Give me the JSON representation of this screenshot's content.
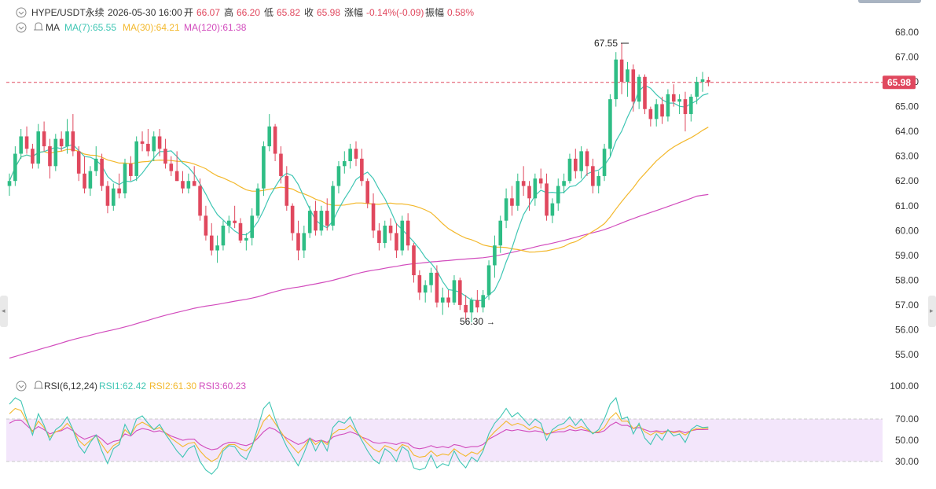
{
  "header": {
    "symbol": "HYPE/USDT永续",
    "datetime": "2026-05-30 16:00",
    "open_label": "开",
    "open": "66.07",
    "high_label": "高",
    "high": "66.20",
    "low_label": "低",
    "low": "65.82",
    "close_label": "收",
    "close": "65.98",
    "change_label": "涨幅",
    "change": "-0.14%(-0.09)",
    "amp_label": "振幅",
    "amp": "0.58%"
  },
  "ma_legend": {
    "label": "MA",
    "ma7": "MA(7):65.55",
    "ma30": "MA(30):64.21",
    "ma120": "MA(120):61.38"
  },
  "rsi_legend": {
    "label": "RSI(6,12,24)",
    "rsi1": "RSI1:62.42",
    "rsi2": "RSI2:61.30",
    "rsi3": "RSI3:60.23"
  },
  "price_labels": {
    "current": "65.98",
    "high_marker": "67.55",
    "low_marker": "56.30",
    "arrow": "→"
  },
  "colors": {
    "up": "#2ebd85",
    "down": "#e0485e",
    "ma7": "#3fc6b4",
    "ma30": "#f3b82c",
    "ma120": "#d24cbd",
    "rsi1": "#3fc6b4",
    "rsi2": "#f3b82c",
    "rsi3": "#d24cbd",
    "rsi_band": "#f3e6fb"
  },
  "chart_data": [
    {
      "type": "candlestick",
      "title": "HYPE/USDT永续",
      "y_axis_ticks": [
        "68.00",
        "67.00",
        "66.00",
        "65.00",
        "64.00",
        "63.00",
        "62.00",
        "61.00",
        "60.00",
        "59.00",
        "58.00",
        "57.00",
        "56.00",
        "55.00"
      ],
      "ylim": [
        54.7,
        68.5
      ],
      "candles_ohlc": [
        [
          61.8,
          62.3,
          61.4,
          62.0
        ],
        [
          62.0,
          63.4,
          61.8,
          63.1
        ],
        [
          63.1,
          64.1,
          62.9,
          63.8
        ],
        [
          63.8,
          64.2,
          63.1,
          63.3
        ],
        [
          63.3,
          63.5,
          62.5,
          62.7
        ],
        [
          62.7,
          64.3,
          62.5,
          64.0
        ],
        [
          64.0,
          64.4,
          63.2,
          63.4
        ],
        [
          63.4,
          63.7,
          62.1,
          62.6
        ],
        [
          62.6,
          63.9,
          62.4,
          63.7
        ],
        [
          63.7,
          64.0,
          63.2,
          63.4
        ],
        [
          63.4,
          64.5,
          63.1,
          64.0
        ],
        [
          64.0,
          64.7,
          63.0,
          63.2
        ],
        [
          63.2,
          63.4,
          62.0,
          62.3
        ],
        [
          62.3,
          63.0,
          61.5,
          61.7
        ],
        [
          61.7,
          62.6,
          61.4,
          62.4
        ],
        [
          62.4,
          63.4,
          62.2,
          62.9
        ],
        [
          62.9,
          63.1,
          61.6,
          61.8
        ],
        [
          61.8,
          62.0,
          60.7,
          61.0
        ],
        [
          61.0,
          61.9,
          60.8,
          61.7
        ],
        [
          61.7,
          62.3,
          61.3,
          61.5
        ],
        [
          61.5,
          62.9,
          61.3,
          62.7
        ],
        [
          62.7,
          63.0,
          62.0,
          62.2
        ],
        [
          62.2,
          63.8,
          62.0,
          63.6
        ],
        [
          63.6,
          64.0,
          63.2,
          63.5
        ],
        [
          63.5,
          64.1,
          63.0,
          63.2
        ],
        [
          63.2,
          64.0,
          62.8,
          63.8
        ],
        [
          63.8,
          64.1,
          63.0,
          63.3
        ],
        [
          63.3,
          63.7,
          62.5,
          62.7
        ],
        [
          62.7,
          63.0,
          62.2,
          62.4
        ],
        [
          62.4,
          63.2,
          62.0,
          62.0
        ],
        [
          62.0,
          62.4,
          61.5,
          61.7
        ],
        [
          61.7,
          62.3,
          61.5,
          62.0
        ],
        [
          62.0,
          62.6,
          61.8,
          61.8
        ],
        [
          61.8,
          62.1,
          60.4,
          60.6
        ],
        [
          60.6,
          61.0,
          59.6,
          59.8
        ],
        [
          59.8,
          60.3,
          59.0,
          59.2
        ],
        [
          59.2,
          59.8,
          58.7,
          59.4
        ],
        [
          59.4,
          60.4,
          59.2,
          60.2
        ],
        [
          60.2,
          60.6,
          59.9,
          60.4
        ],
        [
          60.4,
          61.0,
          60.1,
          60.3
        ],
        [
          60.3,
          60.5,
          59.5,
          59.6
        ],
        [
          59.6,
          59.9,
          59.2,
          59.7
        ],
        [
          59.7,
          60.9,
          59.4,
          60.6
        ],
        [
          60.6,
          61.9,
          60.5,
          61.7
        ],
        [
          61.7,
          63.6,
          61.4,
          63.4
        ],
        [
          63.4,
          64.7,
          63.2,
          64.2
        ],
        [
          64.2,
          64.3,
          62.8,
          63.1
        ],
        [
          63.1,
          63.4,
          61.9,
          62.2
        ],
        [
          62.2,
          62.6,
          60.8,
          61.0
        ],
        [
          61.0,
          61.1,
          59.6,
          59.9
        ],
        [
          59.9,
          60.4,
          58.8,
          59.2
        ],
        [
          59.2,
          60.2,
          58.9,
          59.9
        ],
        [
          59.9,
          61.0,
          59.7,
          60.8
        ],
        [
          60.8,
          61.2,
          59.8,
          60.0
        ],
        [
          60.0,
          61.0,
          59.8,
          60.8
        ],
        [
          60.8,
          61.3,
          60.0,
          60.2
        ],
        [
          60.2,
          62.0,
          60.0,
          61.8
        ],
        [
          61.8,
          62.8,
          61.5,
          62.6
        ],
        [
          62.6,
          63.2,
          62.3,
          62.8
        ],
        [
          62.8,
          63.5,
          62.5,
          63.3
        ],
        [
          63.3,
          63.6,
          62.6,
          62.9
        ],
        [
          62.9,
          63.3,
          61.8,
          62.0
        ],
        [
          62.0,
          62.1,
          60.9,
          61.1
        ],
        [
          61.1,
          61.5,
          59.7,
          60.0
        ],
        [
          60.0,
          60.3,
          59.2,
          59.5
        ],
        [
          59.5,
          60.4,
          59.3,
          60.2
        ],
        [
          60.2,
          60.5,
          59.6,
          59.9
        ],
        [
          59.9,
          60.3,
          58.9,
          59.2
        ],
        [
          59.2,
          60.6,
          59.0,
          60.4
        ],
        [
          60.4,
          60.7,
          59.2,
          59.4
        ],
        [
          59.4,
          59.5,
          57.9,
          58.2
        ],
        [
          58.2,
          58.4,
          57.2,
          57.5
        ],
        [
          57.5,
          58.0,
          57.1,
          57.8
        ],
        [
          57.8,
          58.5,
          57.5,
          58.3
        ],
        [
          58.3,
          58.6,
          56.9,
          57.1
        ],
        [
          57.1,
          57.7,
          56.6,
          57.3
        ],
        [
          57.3,
          57.6,
          56.9,
          57.1
        ],
        [
          57.1,
          58.2,
          57.0,
          58.0
        ],
        [
          58.0,
          58.1,
          56.8,
          57.0
        ],
        [
          57.0,
          57.4,
          56.4,
          56.7
        ],
        [
          56.7,
          57.3,
          56.3,
          57.2
        ],
        [
          57.2,
          57.6,
          56.7,
          56.9
        ],
        [
          56.9,
          57.6,
          56.7,
          57.4
        ],
        [
          57.4,
          58.8,
          57.2,
          58.6
        ],
        [
          58.6,
          59.8,
          58.1,
          59.4
        ],
        [
          59.4,
          60.6,
          59.1,
          60.4
        ],
        [
          60.4,
          61.7,
          60.1,
          61.3
        ],
        [
          61.3,
          61.8,
          60.6,
          61.0
        ],
        [
          61.0,
          62.3,
          60.8,
          62.0
        ],
        [
          62.0,
          62.6,
          61.4,
          61.8
        ],
        [
          61.8,
          62.0,
          60.8,
          61.3
        ],
        [
          61.3,
          62.3,
          61.0,
          62.1
        ],
        [
          62.1,
          62.5,
          61.7,
          61.9
        ],
        [
          61.9,
          62.3,
          60.4,
          60.6
        ],
        [
          60.6,
          61.3,
          60.3,
          61.1
        ],
        [
          61.1,
          62.1,
          60.8,
          61.8
        ],
        [
          61.8,
          62.3,
          61.5,
          62.0
        ],
        [
          62.0,
          63.1,
          61.9,
          62.9
        ],
        [
          62.9,
          63.3,
          62.1,
          62.4
        ],
        [
          62.4,
          63.4,
          62.1,
          63.2
        ],
        [
          63.2,
          63.3,
          62.2,
          62.6
        ],
        [
          62.6,
          62.9,
          61.5,
          61.8
        ],
        [
          61.8,
          62.4,
          61.5,
          62.2
        ],
        [
          62.2,
          63.5,
          62.0,
          63.3
        ],
        [
          63.3,
          65.5,
          63.0,
          65.3
        ],
        [
          65.3,
          67.2,
          65.0,
          66.9
        ],
        [
          66.9,
          67.55,
          65.5,
          66.0
        ],
        [
          66.0,
          66.8,
          65.4,
          66.5
        ],
        [
          66.5,
          66.7,
          64.8,
          65.2
        ],
        [
          65.2,
          66.3,
          64.9,
          66.2
        ],
        [
          66.2,
          66.3,
          64.7,
          64.9
        ],
        [
          64.9,
          65.0,
          64.2,
          64.5
        ],
        [
          64.5,
          65.3,
          64.2,
          65.1
        ],
        [
          65.1,
          65.4,
          64.3,
          64.6
        ],
        [
          64.6,
          65.7,
          64.4,
          65.5
        ],
        [
          65.5,
          65.9,
          65.0,
          65.2
        ],
        [
          65.2,
          65.5,
          64.7,
          65.3
        ],
        [
          65.3,
          65.6,
          64.0,
          64.7
        ],
        [
          64.7,
          65.5,
          64.4,
          65.4
        ],
        [
          65.4,
          66.2,
          65.1,
          66.0
        ],
        [
          66.0,
          66.4,
          65.6,
          66.1
        ],
        [
          66.07,
          66.2,
          65.82,
          65.98
        ]
      ],
      "annotations": [
        {
          "text": "67.55",
          "kind": "period-high"
        },
        {
          "text": "56.30",
          "kind": "period-low"
        },
        {
          "text": "65.98",
          "kind": "last-price"
        }
      ]
    },
    {
      "type": "line",
      "title": "RSI(6,12,24)",
      "y_axis_ticks": [
        "100.00",
        "70.00",
        "50.00",
        "30.00"
      ],
      "ylim": [
        0,
        100
      ],
      "reference_lines": [
        70,
        30
      ],
      "series": [
        {
          "name": "RSI1",
          "values": [
            84,
            90,
            87,
            70,
            55,
            75,
            64,
            50,
            60,
            64,
            72,
            60,
            45,
            38,
            48,
            55,
            40,
            28,
            42,
            46,
            65,
            55,
            70,
            73,
            66,
            60,
            65,
            56,
            48,
            40,
            34,
            42,
            45,
            30,
            22,
            18,
            24,
            40,
            45,
            44,
            36,
            32,
            44,
            62,
            80,
            86,
            70,
            56,
            44,
            35,
            26,
            38,
            52,
            40,
            50,
            40,
            62,
            68,
            66,
            72,
            60,
            50,
            40,
            32,
            28,
            42,
            38,
            30,
            44,
            40,
            24,
            22,
            24,
            36,
            24,
            28,
            26,
            40,
            30,
            24,
            34,
            30,
            40,
            56,
            66,
            72,
            80,
            72,
            76,
            70,
            64,
            70,
            66,
            50,
            60,
            64,
            66,
            72,
            64,
            70,
            62,
            56,
            60,
            70,
            84,
            90,
            70,
            72,
            56,
            66,
            52,
            46,
            56,
            50,
            60,
            54,
            56,
            48,
            60,
            64,
            62,
            62.42
          ]
        },
        {
          "name": "RSI2",
          "values": [
            75,
            80,
            78,
            68,
            58,
            68,
            62,
            53,
            58,
            60,
            66,
            60,
            50,
            45,
            50,
            54,
            46,
            38,
            45,
            48,
            60,
            55,
            64,
            67,
            64,
            60,
            62,
            57,
            52,
            48,
            44,
            47,
            48,
            40,
            34,
            30,
            33,
            42,
            46,
            46,
            42,
            40,
            45,
            56,
            68,
            74,
            66,
            58,
            50,
            44,
            38,
            44,
            52,
            46,
            50,
            46,
            56,
            60,
            60,
            64,
            58,
            53,
            47,
            42,
            39,
            45,
            43,
            40,
            46,
            44,
            36,
            34,
            35,
            40,
            35,
            37,
            36,
            42,
            38,
            35,
            39,
            37,
            42,
            52,
            58,
            63,
            68,
            64,
            66,
            64,
            60,
            63,
            61,
            55,
            58,
            60,
            61,
            64,
            61,
            63,
            60,
            57,
            58,
            62,
            71,
            76,
            68,
            68,
            61,
            64,
            58,
            55,
            58,
            56,
            59,
            57,
            58,
            55,
            59,
            61,
            61,
            61.3
          ]
        },
        {
          "name": "RSI3",
          "values": [
            66,
            69,
            69,
            64,
            59,
            63,
            60,
            56,
            58,
            59,
            62,
            59,
            54,
            51,
            53,
            55,
            51,
            46,
            49,
            50,
            56,
            54,
            59,
            61,
            60,
            58,
            59,
            57,
            54,
            52,
            50,
            51,
            51,
            46,
            43,
            41,
            42,
            46,
            48,
            48,
            46,
            45,
            47,
            52,
            58,
            62,
            60,
            56,
            52,
            49,
            46,
            48,
            52,
            49,
            50,
            48,
            53,
            55,
            56,
            58,
            56,
            53,
            51,
            48,
            47,
            48,
            47,
            46,
            48,
            47,
            43,
            42,
            43,
            45,
            43,
            44,
            43,
            46,
            45,
            43,
            44,
            44,
            46,
            51,
            54,
            57,
            60,
            59,
            60,
            59,
            58,
            59,
            58,
            56,
            57,
            58,
            58,
            60,
            59,
            60,
            59,
            57,
            57,
            59,
            64,
            67,
            64,
            64,
            61,
            62,
            60,
            58,
            59,
            58,
            59,
            58,
            59,
            57,
            59,
            60,
            60,
            60.23
          ]
        }
      ]
    }
  ]
}
